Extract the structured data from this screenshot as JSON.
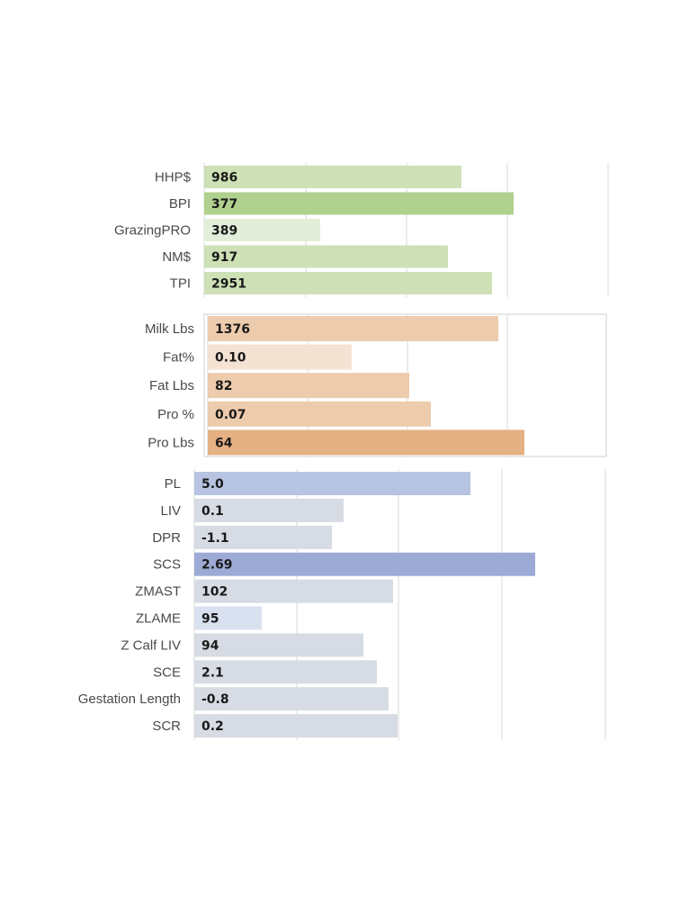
{
  "chart_data": [
    {
      "type": "bar",
      "orientation": "horizontal",
      "categories": [
        "HHP$",
        "BPI",
        "GrazingPRO",
        "NM$",
        "TPI"
      ],
      "values": [
        986,
        377,
        389,
        917,
        2951
      ],
      "value_labels": [
        "986",
        "377",
        "389",
        "917",
        "2951"
      ],
      "bar_colors": [
        "#cde0b6",
        "#b0d08e",
        "#e3eeda",
        "#cde0b6",
        "#cde0b6"
      ],
      "grid": true
    },
    {
      "type": "bar",
      "orientation": "horizontal",
      "categories": [
        "Milk Lbs",
        "Fat%",
        "Fat Lbs",
        "Pro %",
        "Pro Lbs"
      ],
      "values": [
        1376,
        0.1,
        82,
        0.07,
        64
      ],
      "value_labels": [
        "1376",
        "0.10",
        "82",
        "0.07",
        "64"
      ],
      "bar_colors": [
        "#edcbad",
        "#f4e2d3",
        "#edcbad",
        "#edcbad",
        "#e5b083"
      ],
      "grid": true
    },
    {
      "type": "bar",
      "orientation": "horizontal",
      "categories": [
        "PL",
        "LIV",
        "DPR",
        "SCS",
        "ZMAST",
        "ZLAME",
        "Z Calf LIV",
        "SCE",
        "Gestation Length",
        "SCR"
      ],
      "values": [
        5.0,
        0.1,
        -1.1,
        2.69,
        102,
        95,
        94,
        2.1,
        -0.8,
        0.2
      ],
      "value_labels": [
        "5.0",
        "0.1",
        "-1.1",
        "2.69",
        "102",
        "95",
        "94",
        "2.1",
        "-0.8",
        "0.2"
      ],
      "bar_colors": [
        "#b6c3e1",
        "#d7dbe3",
        "#d7dbe3",
        "#9daad6",
        "#d7dbe3",
        "#d9e0ef",
        "#d7dbe3",
        "#d7dbe3",
        "#d7dbe3",
        "#d7dbe3"
      ],
      "grid": true
    }
  ]
}
